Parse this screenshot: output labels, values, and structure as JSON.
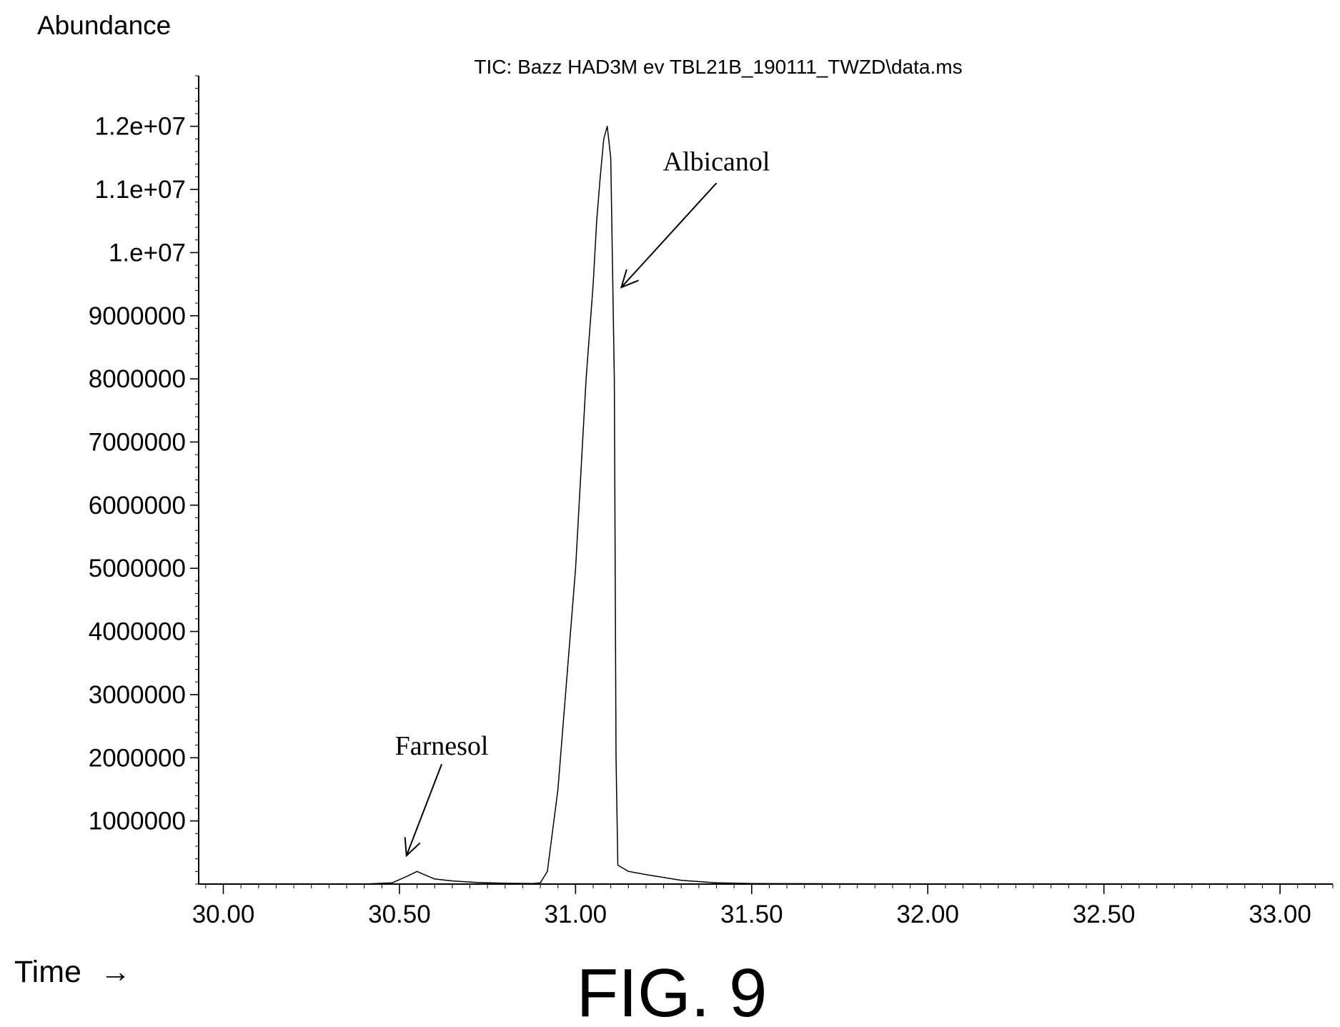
{
  "chart_data": {
    "type": "line",
    "title": "TIC: Bazz HAD3M ev TBL21B_190111_TWZD\\data.ms",
    "ylabel": "Abundance",
    "xlabel": "Time",
    "xlabel_arrow": "→",
    "xlim": [
      29.93,
      33.15
    ],
    "ylim": [
      0,
      12800000
    ],
    "x_ticks": [
      30.0,
      30.5,
      31.0,
      31.5,
      32.0,
      32.5,
      33.0
    ],
    "x_tick_labels": [
      "30.00",
      "30.50",
      "31.00",
      "31.50",
      "32.00",
      "32.50",
      "33.00"
    ],
    "y_ticks": [
      1000000,
      2000000,
      3000000,
      4000000,
      5000000,
      6000000,
      7000000,
      8000000,
      9000000,
      10000000,
      11000000,
      12000000
    ],
    "y_tick_labels": [
      "1000000",
      "2000000",
      "3000000",
      "4000000",
      "5000000",
      "6000000",
      "7000000",
      "8000000",
      "9000000",
      "1.e+07",
      "1.1e+07",
      "1.2e+07"
    ],
    "grid": false,
    "series": [
      {
        "x": [
          29.93,
          30.4,
          30.48,
          30.52,
          30.55,
          30.57,
          30.6,
          30.65,
          30.72,
          30.8,
          30.88,
          30.9,
          30.92,
          30.95,
          31.0,
          31.03,
          31.05,
          31.06,
          31.07,
          31.08,
          31.09,
          31.1,
          31.11,
          31.115,
          31.12,
          31.15,
          31.2,
          31.3,
          31.4,
          31.5,
          32.0,
          33.15
        ],
        "y": [
          0,
          0,
          20000,
          120000,
          200000,
          150000,
          80000,
          50000,
          25000,
          12000,
          8000,
          20000,
          200000,
          1500000,
          5000000,
          8000000,
          9500000,
          10500000,
          11200000,
          11800000,
          12000000,
          11500000,
          8000000,
          2000000,
          300000,
          200000,
          150000,
          60000,
          20000,
          8000,
          0,
          0
        ]
      }
    ],
    "annotations": [
      {
        "text": "Albicanol",
        "x": 31.4,
        "y": 11300000,
        "arrow_from": [
          31.4,
          11100000
        ],
        "arrow_to": [
          31.13,
          9450000
        ]
      },
      {
        "text": "Farnesol",
        "x": 30.62,
        "y": 2050000,
        "arrow_from": [
          30.62,
          1900000
        ],
        "arrow_to": [
          30.52,
          450000
        ]
      }
    ]
  },
  "caption": "FIG. 9"
}
